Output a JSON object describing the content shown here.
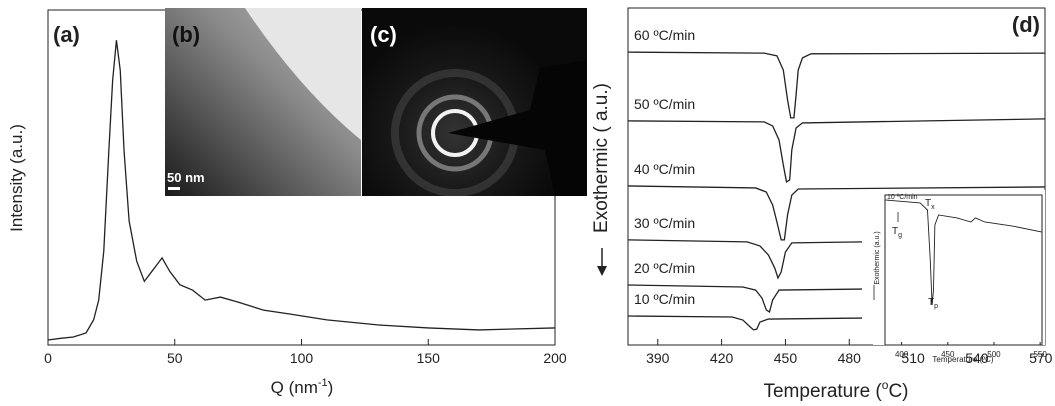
{
  "chart_data": [
    {
      "type": "line",
      "panel": "(a)",
      "ylabel": "Intensity (a.u.)",
      "xlabel": [
        "Q (nm",
        "-1",
        ")"
      ],
      "x": [
        0,
        5,
        10,
        15,
        18,
        20,
        22,
        24,
        25.5,
        27,
        28.5,
        30,
        32,
        35,
        38,
        41,
        43,
        45,
        48,
        52,
        57,
        62,
        68,
        75,
        85,
        95,
        110,
        130,
        150,
        170,
        200
      ],
      "values": [
        1.5,
        2,
        2.4,
        3.6,
        7.5,
        13.4,
        28,
        58,
        79,
        91,
        82,
        58,
        37,
        25,
        19,
        22,
        24,
        26,
        22,
        18,
        16.4,
        13.4,
        14.3,
        12.8,
        10.4,
        9.3,
        7.5,
        6,
        5.1,
        4.5,
        5.1
      ],
      "color": "#222222",
      "xlim": [
        0,
        200
      ],
      "ylim": [
        0,
        100
      ],
      "xticks": [
        0,
        50,
        100,
        150,
        200
      ]
    },
    {
      "type": "line",
      "panel": "(d)",
      "ylabel": "Exothermic ( a.u.)",
      "xlabel": [
        "Temperature (",
        "o",
        "C)"
      ],
      "xlim": [
        376,
        572
      ],
      "ylim": [
        0,
        100
      ],
      "xticks": [
        390,
        420,
        450,
        480,
        510,
        540,
        570
      ],
      "series": [
        {
          "name": "60 ºC/min",
          "color": "#222222",
          "x": [
            376,
            440,
            446,
            449,
            451,
            452.5,
            454,
            455,
            456,
            458,
            462,
            572
          ],
          "values": [
            86.9,
            86.6,
            85.8,
            81.6,
            72.7,
            67.4,
            67.4,
            74.2,
            81.6,
            85.2,
            86.4,
            86.6
          ]
        },
        {
          "name": "50 ºC/min",
          "color": "#222222",
          "x": [
            376,
            440,
            444,
            447,
            449,
            450.5,
            452,
            453,
            455,
            458,
            572
          ],
          "values": [
            66.5,
            66.2,
            65.0,
            60.8,
            53.4,
            48.4,
            49.0,
            57.9,
            64.4,
            65.9,
            67.1
          ]
        },
        {
          "name": "40 ºC/min",
          "color": "#222222",
          "x": [
            376,
            436,
            441,
            444,
            446,
            448,
            449.5,
            451,
            453,
            456,
            572
          ],
          "values": [
            47.2,
            46.6,
            45.4,
            41.5,
            36.5,
            31.2,
            31.2,
            38.6,
            44.5,
            46.3,
            46.9
          ]
        },
        {
          "name": "30 ºC/min",
          "color": "#222222",
          "x": [
            376,
            432,
            438,
            442,
            445,
            446.5,
            448,
            450,
            453,
            486
          ],
          "values": [
            31.2,
            30.6,
            29.4,
            26.7,
            22.8,
            19.9,
            21.7,
            27.6,
            30.3,
            30.6
          ]
        },
        {
          "name": "20 ºC/min",
          "color": "#222222",
          "x": [
            376,
            430,
            436,
            439,
            441,
            442.5,
            444,
            447,
            486
          ],
          "values": [
            17.8,
            17.2,
            16.3,
            13.9,
            10.4,
            9.8,
            13.4,
            16.3,
            16.6
          ]
        },
        {
          "name": "10 ºC/min",
          "color": "#222222",
          "x": [
            376,
            425,
            430,
            433,
            435,
            436.5,
            438,
            442,
            486
          ],
          "values": [
            8.6,
            8.3,
            7.4,
            5.6,
            4.5,
            4.7,
            6.8,
            7.7,
            8.0
          ]
        }
      ]
    },
    {
      "type": "line",
      "ylabel": "Exothermic (a.u.)",
      "xlabel": "Temperature (ºC)",
      "xlim": [
        382,
        552
      ],
      "ylim": [
        0,
        100
      ],
      "xticks": [
        400,
        450,
        500,
        550
      ],
      "annotations": [
        {
          "base": "T",
          "sub": "x"
        },
        {
          "base": "T",
          "sub": "g"
        },
        {
          "base": "T",
          "sub": "p"
        }
      ],
      "series": [
        {
          "name": "10 ºC/min",
          "color": "#222222",
          "x": [
            382,
            420,
            428,
            431,
            433,
            434.5,
            436,
            440,
            460,
            475,
            480,
            490,
            520,
            552
          ],
          "values": [
            96.7,
            94.7,
            90,
            56.7,
            26.7,
            36.7,
            80,
            86.7,
            84.7,
            82,
            84.7,
            82,
            79.3,
            75.3
          ]
        }
      ]
    }
  ],
  "images": {
    "b": {
      "panel": "(b)",
      "scale": "50 nm"
    },
    "c": {
      "panel": "(c)"
    }
  }
}
